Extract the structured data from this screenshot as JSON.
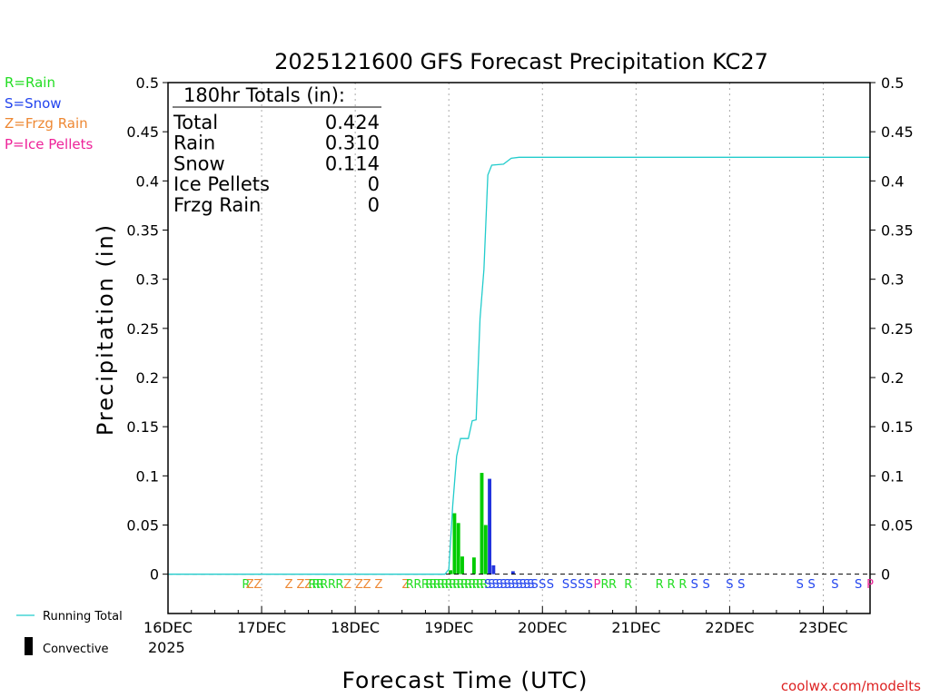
{
  "title": "2025121600 GFS Forecast Precipitation KC27",
  "ylabel": "Precipitation (in)",
  "xlabel": "Forecast Time (UTC)",
  "credit": "coolwx.com/modelts",
  "legend": {
    "types": [
      {
        "text": "R=Rain",
        "color": "#22dd22"
      },
      {
        "text": "S=Snow",
        "color": "#2244ee"
      },
      {
        "text": "Z=Frzg Rain",
        "color": "#ee8833"
      },
      {
        "text": "P=Ice Pellets",
        "color": "#ee2299"
      }
    ],
    "running_total": "Running Total",
    "convective": "Convective"
  },
  "totals": {
    "header": "180hr Totals (in):",
    "rows": [
      {
        "label": "Total",
        "value": "0.424"
      },
      {
        "label": "Rain",
        "value": "0.310"
      },
      {
        "label": "Snow",
        "value": "0.114"
      },
      {
        "label": "Ice Pellets",
        "value": "0"
      },
      {
        "label": "Frzg Rain",
        "value": "0"
      }
    ]
  },
  "colors": {
    "rain": "#00cc00",
    "snow": "#2233dd",
    "running_total": "#22cccc",
    "credit": "#dd2222"
  },
  "chart_data": {
    "type": "bar",
    "title": "2025121600 GFS Forecast Precipitation KC27",
    "xlabel": "Forecast Time (UTC)",
    "ylabel": "Precipitation (in)",
    "xlim": [
      0,
      180
    ],
    "ylim": [
      -0.04,
      0.5
    ],
    "y_ticks": [
      "0",
      "0.05",
      "0.1",
      "0.15",
      "0.2",
      "0.25",
      "0.3",
      "0.35",
      "0.4",
      "0.45",
      "0.5"
    ],
    "y_tick_values": [
      0,
      0.05,
      0.1,
      0.15,
      0.2,
      0.25,
      0.3,
      0.35,
      0.4,
      0.45,
      0.5
    ],
    "x_ticks": [
      {
        "hour": 0,
        "label": "16DEC"
      },
      {
        "hour": 24,
        "label": "17DEC"
      },
      {
        "hour": 48,
        "label": "18DEC"
      },
      {
        "hour": 72,
        "label": "19DEC"
      },
      {
        "hour": 96,
        "label": "20DEC"
      },
      {
        "hour": 120,
        "label": "21DEC"
      },
      {
        "hour": 144,
        "label": "22DEC"
      },
      {
        "hour": 168,
        "label": "23DEC"
      }
    ],
    "x_year_label": "2025",
    "grid": "vertical dotted",
    "bars": [
      {
        "hour": 72,
        "value": 0.004,
        "type": "rain"
      },
      {
        "hour": 73,
        "value": 0.062,
        "type": "rain"
      },
      {
        "hour": 74,
        "value": 0.052,
        "type": "rain"
      },
      {
        "hour": 75,
        "value": 0.018,
        "type": "rain"
      },
      {
        "hour": 78,
        "value": 0.017,
        "type": "rain"
      },
      {
        "hour": 80,
        "value": 0.103,
        "type": "rain"
      },
      {
        "hour": 81,
        "value": 0.05,
        "type": "rain"
      },
      {
        "hour": 82,
        "value": 0.097,
        "type": "snow"
      },
      {
        "hour": 83,
        "value": 0.009,
        "type": "snow"
      },
      {
        "hour": 88,
        "value": 0.003,
        "type": "snow"
      }
    ],
    "running_total": [
      {
        "hour": 0,
        "value": 0
      },
      {
        "hour": 71,
        "value": 0
      },
      {
        "hour": 72,
        "value": 0.005
      },
      {
        "hour": 73,
        "value": 0.07
      },
      {
        "hour": 74,
        "value": 0.12
      },
      {
        "hour": 75,
        "value": 0.138
      },
      {
        "hour": 77,
        "value": 0.138
      },
      {
        "hour": 78,
        "value": 0.156
      },
      {
        "hour": 79,
        "value": 0.157
      },
      {
        "hour": 80,
        "value": 0.26
      },
      {
        "hour": 81,
        "value": 0.31
      },
      {
        "hour": 82,
        "value": 0.406
      },
      {
        "hour": 83,
        "value": 0.416
      },
      {
        "hour": 86,
        "value": 0.417
      },
      {
        "hour": 88,
        "value": 0.423
      },
      {
        "hour": 90,
        "value": 0.424
      },
      {
        "hour": 180,
        "value": 0.424
      }
    ],
    "precip_types": [
      {
        "hour": 20,
        "type": "R"
      },
      {
        "hour": 21,
        "type": "Z"
      },
      {
        "hour": 23,
        "type": "Z"
      },
      {
        "hour": 31,
        "type": "Z"
      },
      {
        "hour": 34,
        "type": "Z"
      },
      {
        "hour": 36,
        "type": "Z"
      },
      {
        "hour": 37,
        "type": "R"
      },
      {
        "hour": 38,
        "type": "R"
      },
      {
        "hour": 39,
        "type": "R"
      },
      {
        "hour": 40,
        "type": "R"
      },
      {
        "hour": 42,
        "type": "R"
      },
      {
        "hour": 44,
        "type": "R"
      },
      {
        "hour": 46,
        "type": "Z"
      },
      {
        "hour": 49,
        "type": "Z"
      },
      {
        "hour": 51,
        "type": "Z"
      },
      {
        "hour": 54,
        "type": "Z"
      },
      {
        "hour": 61,
        "type": "Z"
      },
      {
        "hour": 62,
        "type": "R"
      },
      {
        "hour": 64,
        "type": "R"
      },
      {
        "hour": 66,
        "type": "R"
      },
      {
        "hour": 67,
        "type": "R"
      },
      {
        "hour": 68,
        "type": "R"
      },
      {
        "hour": 69,
        "type": "R"
      },
      {
        "hour": 70,
        "type": "R"
      },
      {
        "hour": 71,
        "type": "R"
      },
      {
        "hour": 72,
        "type": "R"
      },
      {
        "hour": 73,
        "type": "R"
      },
      {
        "hour": 74,
        "type": "R"
      },
      {
        "hour": 75,
        "type": "R"
      },
      {
        "hour": 76,
        "type": "R"
      },
      {
        "hour": 77,
        "type": "R"
      },
      {
        "hour": 78,
        "type": "R"
      },
      {
        "hour": 79,
        "type": "R"
      },
      {
        "hour": 80,
        "type": "R"
      },
      {
        "hour": 81,
        "type": "R"
      },
      {
        "hour": 82,
        "type": "S"
      },
      {
        "hour": 83,
        "type": "S"
      },
      {
        "hour": 84,
        "type": "S"
      },
      {
        "hour": 85,
        "type": "S"
      },
      {
        "hour": 86,
        "type": "S"
      },
      {
        "hour": 87,
        "type": "S"
      },
      {
        "hour": 88,
        "type": "S"
      },
      {
        "hour": 89,
        "type": "S"
      },
      {
        "hour": 90,
        "type": "S"
      },
      {
        "hour": 91,
        "type": "S"
      },
      {
        "hour": 92,
        "type": "S"
      },
      {
        "hour": 93,
        "type": "S"
      },
      {
        "hour": 94,
        "type": "S"
      },
      {
        "hour": 96,
        "type": "S"
      },
      {
        "hour": 98,
        "type": "S"
      },
      {
        "hour": 102,
        "type": "S"
      },
      {
        "hour": 104,
        "type": "S"
      },
      {
        "hour": 106,
        "type": "S"
      },
      {
        "hour": 108,
        "type": "S"
      },
      {
        "hour": 110,
        "type": "P"
      },
      {
        "hour": 112,
        "type": "R"
      },
      {
        "hour": 114,
        "type": "R"
      },
      {
        "hour": 118,
        "type": "R"
      },
      {
        "hour": 126,
        "type": "R"
      },
      {
        "hour": 129,
        "type": "R"
      },
      {
        "hour": 132,
        "type": "R"
      },
      {
        "hour": 135,
        "type": "S"
      },
      {
        "hour": 138,
        "type": "S"
      },
      {
        "hour": 144,
        "type": "S"
      },
      {
        "hour": 147,
        "type": "S"
      },
      {
        "hour": 162,
        "type": "S"
      },
      {
        "hour": 165,
        "type": "S"
      },
      {
        "hour": 171,
        "type": "S"
      },
      {
        "hour": 177,
        "type": "S"
      },
      {
        "hour": 180,
        "type": "P"
      }
    ]
  }
}
